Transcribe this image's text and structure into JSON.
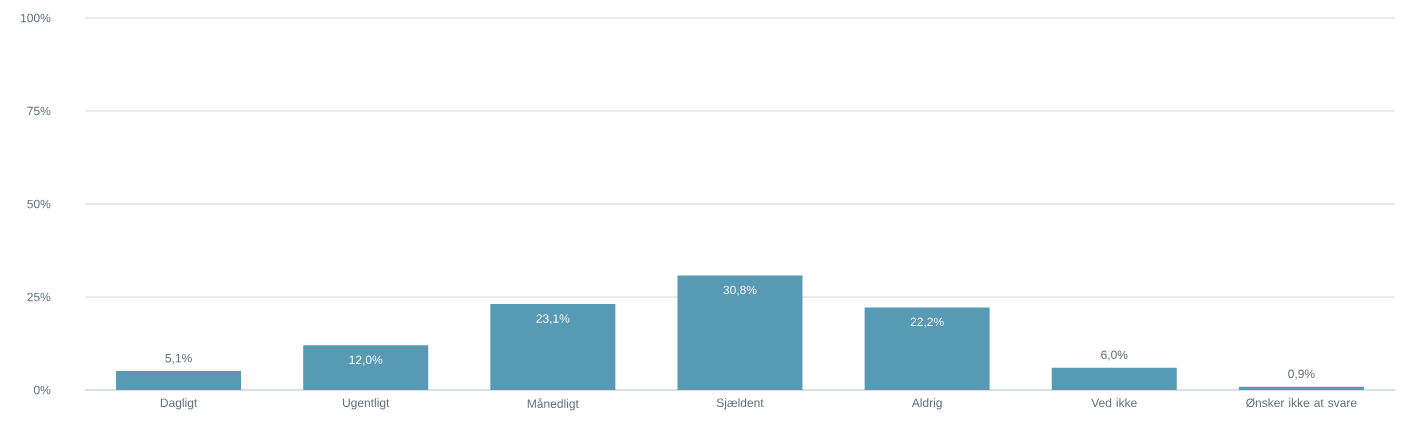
{
  "chart_data": {
    "type": "bar",
    "categories": [
      "Dagligt",
      "Ugentligt",
      "Månedligt",
      "Sjældent",
      "Aldrig",
      "Ved ikke",
      "Ønsker ikke at svare"
    ],
    "values": [
      5.1,
      12.0,
      23.1,
      30.8,
      22.2,
      6.0,
      0.9
    ],
    "value_labels": [
      "5,1%",
      "12,0%",
      "23,1%",
      "30,8%",
      "22,2%",
      "6,0%",
      "0,9%"
    ],
    "color": "#5899b4",
    "ylim": [
      0,
      100
    ],
    "yticks": [
      {
        "value": 0,
        "label": "0%"
      },
      {
        "value": 25,
        "label": "25%"
      },
      {
        "value": 50,
        "label": "50%"
      },
      {
        "value": 75,
        "label": "75%"
      },
      {
        "value": 100,
        "label": "100%"
      }
    ],
    "grid": "y"
  }
}
